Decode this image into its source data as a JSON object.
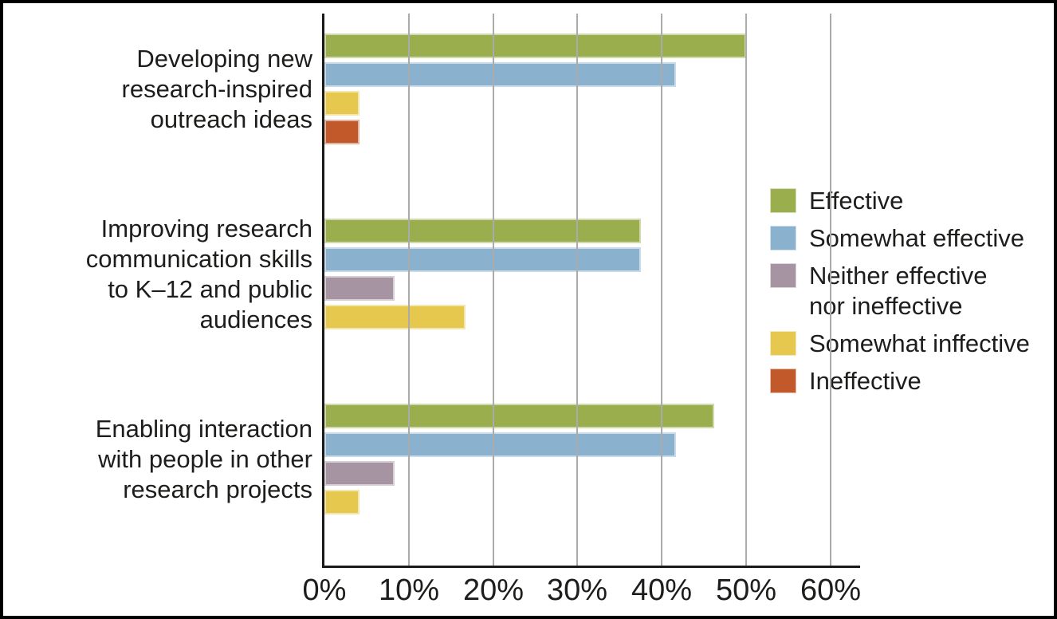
{
  "chart_data": {
    "type": "bar",
    "orientation": "horizontal",
    "title": "",
    "xlabel": "",
    "ylabel": "",
    "xlim": [
      0,
      63.5
    ],
    "grid": "vertical-gray-lines-over-bars",
    "legend_position": "right",
    "categories": [
      {
        "label": "Developing new research-inspired outreach ideas",
        "lines": [
          "Developing new",
          "research-inspired",
          "outreach ideas"
        ]
      },
      {
        "label": "Improving research communication skills to K–12 and public audiences",
        "lines": [
          "Improving research",
          "communication skills",
          "to K–12 and public",
          "audiences"
        ]
      },
      {
        "label": "Enabling interaction with people in other research projects",
        "lines": [
          "Enabling interaction",
          "with people in other",
          "research projects"
        ]
      }
    ],
    "series": [
      {
        "name": "Effective",
        "legend_label": "Effective",
        "color": "#9AAE4D",
        "values": [
          50,
          37.5,
          46.2
        ]
      },
      {
        "name": "Somewhat effective",
        "legend_label": "Somewhat effective",
        "color": "#8AB2CE",
        "values": [
          41.7,
          37.5,
          41.7
        ]
      },
      {
        "name": "Neither effective nor ineffective",
        "legend_label": "Neither effective\nnor ineffective",
        "color": "#A694A3",
        "values": [
          0,
          8.3,
          8.3
        ]
      },
      {
        "name": "Somewhat inffective",
        "legend_label": "Somewhat inffective",
        "color": "#E7C84F",
        "values": [
          4.2,
          16.7,
          4.2
        ]
      },
      {
        "name": "Ineffective",
        "legend_label": "Ineffective",
        "color": "#C2592B",
        "values": [
          4.2,
          0,
          0
        ]
      }
    ],
    "x_ticks": [
      {
        "value": 0,
        "label": "0%"
      },
      {
        "value": 10,
        "label": "10%"
      },
      {
        "value": 20,
        "label": "20%"
      },
      {
        "value": 30,
        "label": "30%"
      },
      {
        "value": 40,
        "label": "40%"
      },
      {
        "value": 50,
        "label": "50%"
      },
      {
        "value": 60,
        "label": "60%"
      }
    ],
    "colors": {
      "axis": "#1a1a1a",
      "gridline": "#ababab",
      "text": "#1d1d1b",
      "background": "#ffffff",
      "frame_border": "#000000"
    }
  }
}
